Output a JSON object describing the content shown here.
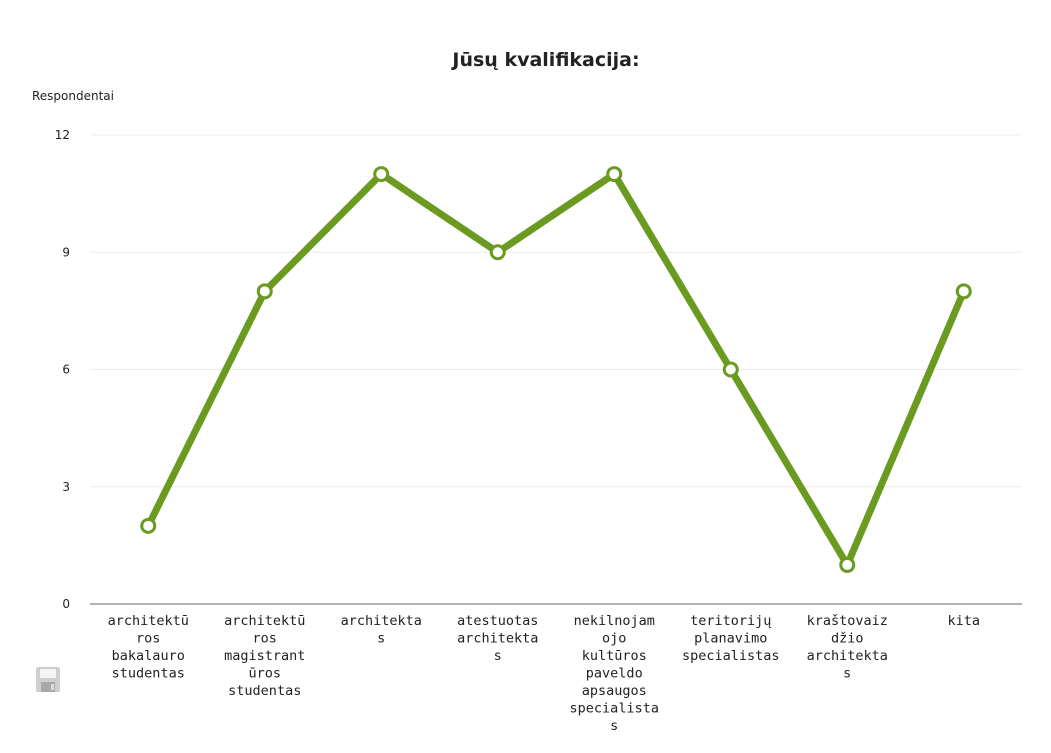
{
  "chart_data": {
    "type": "line",
    "title": "Jūsų kvalifikacija:",
    "ylabel": "Respondentai",
    "xlabel": "",
    "ylim": [
      0,
      12
    ],
    "yticks": [
      0,
      3,
      6,
      9,
      12
    ],
    "grid": true,
    "categories": [
      "architektū ros bakalauro studentas",
      "architektū ros magistrant ūros studentas",
      "architekta s",
      "atestuotas architekta s",
      "nekilnojam ojo kultūros paveldo apsaugos specialista s",
      "teritorijų planavimo specialistas",
      "kraštovaiz džio architekta s",
      "kita"
    ],
    "category_lines": [
      [
        "architektū",
        "ros",
        "bakalauro",
        "studentas"
      ],
      [
        "architektū",
        "ros",
        "magistrant",
        "ūros",
        "studentas"
      ],
      [
        "architekta",
        "s"
      ],
      [
        "atestuotas",
        "architekta",
        "s"
      ],
      [
        "nekilnojam",
        "ojo",
        "kultūros",
        "paveldo",
        "apsaugos",
        "specialista",
        "s"
      ],
      [
        "teritorijų",
        "planavimo",
        "specialistas"
      ],
      [
        "kraštovaiz",
        "džio",
        "architekta",
        "s"
      ],
      [
        "kita"
      ]
    ],
    "series": [
      {
        "values": [
          2,
          8,
          11,
          9,
          11,
          6,
          1,
          8
        ],
        "color": "#6a9a1f"
      }
    ]
  },
  "icons": {
    "save": "save-icon"
  },
  "colors": {
    "line": "#6a9a1f",
    "marker_fill": "#ffffff",
    "grid": "#ececec",
    "axis": "#666666",
    "text": "#222222",
    "icon": "#c8c8c8"
  }
}
